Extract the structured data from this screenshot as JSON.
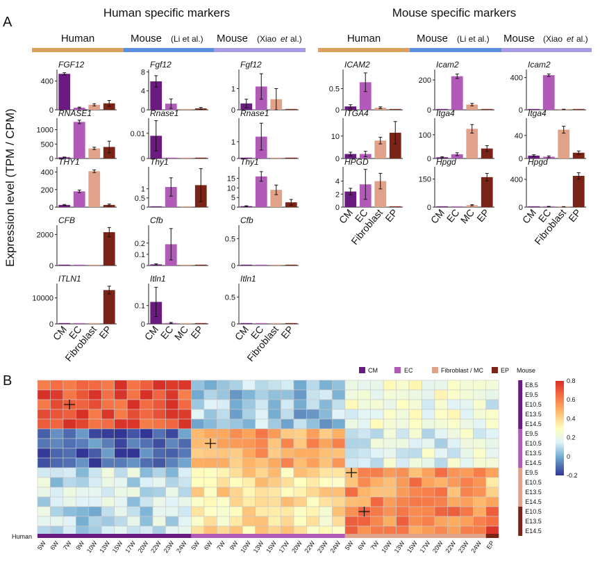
{
  "panel_labels": {
    "a": "A",
    "b": "B"
  },
  "section_titles": {
    "human_specific": "Human specific markers",
    "mouse_specific": "Mouse specific markers"
  },
  "column_headers": {
    "human": "Human",
    "mouse": "Mouse",
    "li": "(Li et al.)",
    "xiao_pre": "(Xiao",
    "xiao_et": "et",
    "xiao_post": "al.)",
    "li_pre": "(Li",
    "li_et": "et",
    "li_post": "al.)"
  },
  "y_axis_label": "Expression level (TPM / CPM)",
  "heatmap_legend": {
    "cm": "CM",
    "ec": "EC",
    "fib": "Fibroblast / MC",
    "ep": "EP",
    "mouse": "Mouse"
  },
  "human_bar_label": "Human",
  "colors": {
    "CM": "#6a1b7f",
    "EC": "#b25ab8",
    "Fibroblast": "#e0a38a",
    "MC": "#e0a38a",
    "EP": "#7a2418",
    "human_bar": "#dba05c",
    "li_bar": "#5b8ee0",
    "xiao_bar": "#a79be6"
  },
  "chart_data": [
    {
      "type": "bar",
      "group": "human_left",
      "gene": "FGF12",
      "categories": [
        "CM",
        "EC",
        "Fibroblast",
        "EP"
      ],
      "values": [
        500,
        30,
        70,
        90
      ],
      "errors": [
        15,
        8,
        15,
        40
      ],
      "yticks": [
        0,
        400
      ],
      "ylim": [
        0,
        560
      ]
    },
    {
      "type": "bar",
      "group": "human_left",
      "gene": "RNASE1",
      "categories": [
        "CM",
        "EC",
        "Fibroblast",
        "EP"
      ],
      "values": [
        40,
        1270,
        350,
        400
      ],
      "errors": [
        10,
        60,
        40,
        200
      ],
      "yticks": [
        0,
        500,
        1000
      ],
      "ylim": [
        0,
        1400
      ]
    },
    {
      "type": "bar",
      "group": "human_left",
      "gene": "THY1",
      "categories": [
        "CM",
        "EC",
        "Fibroblast",
        "EP"
      ],
      "values": [
        25,
        180,
        410,
        25
      ],
      "errors": [
        5,
        15,
        15,
        10
      ],
      "yticks": [
        0,
        200,
        400
      ],
      "ylim": [
        0,
        460
      ]
    },
    {
      "type": "bar",
      "group": "human_left",
      "gene": "CFB",
      "categories": [
        "CM",
        "EC",
        "Fibroblast",
        "EP"
      ],
      "values": [
        0,
        0,
        0,
        2150
      ],
      "errors": [
        0,
        0,
        0,
        300
      ],
      "yticks": [
        0,
        2000
      ],
      "ylim": [
        0,
        2600
      ]
    },
    {
      "type": "bar",
      "group": "human_left",
      "gene": "ITLN1",
      "categories": [
        "CM",
        "EC",
        "Fibroblast",
        "EP"
      ],
      "values": [
        0,
        0,
        0,
        13000
      ],
      "errors": [
        0,
        0,
        0,
        1500
      ],
      "yticks": [
        0,
        10000
      ],
      "ylim": [
        0,
        15500
      ]
    },
    {
      "type": "bar",
      "group": "li_left",
      "gene": "Fgf12",
      "categories": [
        "CM",
        "EC",
        "MC",
        "EP"
      ],
      "values": [
        6,
        1.3,
        0,
        0.3
      ],
      "errors": [
        1.2,
        1.0,
        0,
        0.2
      ],
      "yticks": [
        0,
        4,
        8
      ],
      "ylim": [
        0,
        8.5
      ]
    },
    {
      "type": "bar",
      "group": "li_left",
      "gene": "Rnase1",
      "categories": [
        "CM",
        "EC",
        "MC",
        "EP"
      ],
      "values": [
        0.009,
        0,
        0,
        0
      ],
      "errors": [
        0.006,
        0,
        0,
        0
      ],
      "yticks": [
        0.0,
        0.01
      ],
      "ylim": [
        0,
        0.016
      ]
    },
    {
      "type": "bar",
      "group": "li_left",
      "gene": "Thy1",
      "categories": [
        "CM",
        "EC",
        "MC",
        "EP"
      ],
      "values": [
        0,
        1.1,
        0,
        1.2
      ],
      "errors": [
        0,
        0.5,
        0,
        0.9
      ],
      "yticks": [
        0.0,
        0.5,
        1.0
      ],
      "ylim": [
        0,
        2.2
      ]
    },
    {
      "type": "bar",
      "group": "li_left",
      "gene": "Cfb",
      "categories": [
        "CM",
        "EC",
        "MC",
        "EP"
      ],
      "values": [
        0.01,
        0.19,
        0,
        0
      ],
      "errors": [
        0.005,
        0.14,
        0,
        0
      ],
      "yticks": [
        0.0,
        0.1,
        0.2
      ],
      "ylim": [
        0,
        0.36
      ]
    },
    {
      "type": "bar",
      "group": "li_left",
      "gene": "Itln1",
      "categories": [
        "CM",
        "EC",
        "MC",
        "EP"
      ],
      "values": [
        0.12,
        0.005,
        0,
        0
      ],
      "errors": [
        0.08,
        0.003,
        0,
        0
      ],
      "yticks": [
        0.0,
        0.1
      ],
      "ylim": [
        0,
        0.22
      ]
    },
    {
      "type": "bar",
      "group": "xiao_left",
      "gene": "Fgf12",
      "categories": [
        "CM",
        "EC",
        "Fibroblast",
        "EP"
      ],
      "values": [
        0.3,
        1.1,
        0.5,
        0
      ],
      "errors": [
        0.2,
        0.6,
        0.5,
        0
      ],
      "yticks": [
        0,
        1
      ],
      "ylim": [
        0,
        1.9
      ]
    },
    {
      "type": "bar",
      "group": "xiao_left",
      "gene": "Rnase1",
      "categories": [
        "CM",
        "EC",
        "Fibroblast",
        "EP"
      ],
      "values": [
        0,
        1.3,
        0,
        0
      ],
      "errors": [
        0,
        0.8,
        0,
        0
      ],
      "yticks": [
        0,
        1
      ],
      "ylim": [
        0,
        2.4
      ]
    },
    {
      "type": "bar",
      "group": "xiao_left",
      "gene": "Thy1",
      "categories": [
        "CM",
        "EC",
        "Fibroblast",
        "EP"
      ],
      "values": [
        0.5,
        16,
        9,
        2.5
      ],
      "errors": [
        0.2,
        2.5,
        2.5,
        1.5
      ],
      "yticks": [
        0,
        5,
        10,
        15
      ],
      "ylim": [
        0,
        21
      ]
    },
    {
      "type": "bar",
      "group": "xiao_left",
      "gene": "Cfb",
      "categories": [
        "CM",
        "EC",
        "Fibroblast",
        "EP"
      ],
      "values": [
        0,
        0,
        0,
        0
      ],
      "errors": [
        0,
        0,
        0,
        0
      ],
      "yticks": [
        0.0,
        0.5
      ],
      "ylim": [
        0,
        0.75
      ]
    },
    {
      "type": "bar",
      "group": "xiao_left",
      "gene": "Itln1",
      "categories": [
        "CM",
        "EC",
        "Fibroblast",
        "EP"
      ],
      "values": [
        0,
        0,
        0,
        0
      ],
      "errors": [
        0,
        0,
        0,
        0
      ],
      "yticks": [
        0.0,
        0.5
      ],
      "ylim": [
        0,
        0.75
      ]
    },
    {
      "type": "bar",
      "group": "human_right",
      "gene": "ICAM2",
      "categories": [
        "CM",
        "EC",
        "Fibroblast",
        "EP"
      ],
      "values": [
        0.08,
        0.65,
        0.05,
        0
      ],
      "errors": [
        0.04,
        0.22,
        0.02,
        0
      ],
      "yticks": [
        0.0,
        0.5
      ],
      "ylim": [
        0,
        0.95
      ]
    },
    {
      "type": "bar",
      "group": "human_right",
      "gene": "ITGA4",
      "categories": [
        "CM",
        "EC",
        "Fibroblast",
        "EP"
      ],
      "values": [
        2,
        2,
        8,
        11.5
      ],
      "errors": [
        0.8,
        1.2,
        1.5,
        5
      ],
      "yticks": [
        0,
        10
      ],
      "ylim": [
        0,
        18
      ]
    },
    {
      "type": "bar",
      "group": "human_right",
      "gene": "HPGD",
      "categories": [
        "CM",
        "EC",
        "Fibroblast",
        "EP"
      ],
      "values": [
        2.4,
        3.5,
        4,
        0
      ],
      "errors": [
        0.5,
        2.3,
        1.2,
        0
      ],
      "yticks": [
        0,
        2,
        4
      ],
      "ylim": [
        0,
        6.2
      ]
    },
    {
      "type": "bar",
      "group": "li_right",
      "gene": "Icam2",
      "categories": [
        "CM",
        "EC",
        "MC",
        "EP"
      ],
      "values": [
        0,
        225,
        35,
        0
      ],
      "errors": [
        0,
        15,
        8,
        0
      ],
      "yticks": [
        0,
        200
      ],
      "ylim": [
        0,
        270
      ]
    },
    {
      "type": "bar",
      "group": "li_right",
      "gene": "Itga4",
      "categories": [
        "CM",
        "EC",
        "MC",
        "EP"
      ],
      "values": [
        5,
        18,
        125,
        42
      ],
      "errors": [
        2,
        6,
        18,
        12
      ],
      "yticks": [
        0,
        100
      ],
      "ylim": [
        0,
        170
      ]
    },
    {
      "type": "bar",
      "group": "li_right",
      "gene": "Hpgd",
      "categories": [
        "CM",
        "EC",
        "MC",
        "EP"
      ],
      "values": [
        0,
        0,
        10,
        160
      ],
      "errors": [
        0,
        0,
        3,
        20
      ],
      "yticks": [
        0,
        150
      ],
      "ylim": [
        0,
        215
      ]
    },
    {
      "type": "bar",
      "group": "xiao_right",
      "gene": "Icam2",
      "categories": [
        "CM",
        "EC",
        "Fibroblast",
        "EP"
      ],
      "values": [
        0,
        430,
        5,
        0
      ],
      "errors": [
        0,
        15,
        2,
        0
      ],
      "yticks": [
        0,
        400
      ],
      "ylim": [
        0,
        500
      ]
    },
    {
      "type": "bar",
      "group": "xiao_right",
      "gene": "Itga4",
      "categories": [
        "CM",
        "EC",
        "Fibroblast",
        "EP"
      ],
      "values": [
        5,
        3,
        50,
        10
      ],
      "errors": [
        1.5,
        1.5,
        6,
        3
      ],
      "yticks": [
        0,
        40
      ],
      "ylim": [
        0,
        70
      ]
    },
    {
      "type": "bar",
      "group": "xiao_right",
      "gene": "Hpgd",
      "categories": [
        "CM",
        "EC",
        "Fibroblast",
        "EP"
      ],
      "values": [
        0,
        8,
        5,
        450
      ],
      "errors": [
        0,
        3,
        2,
        45
      ],
      "yticks": [
        0,
        400
      ],
      "ylim": [
        0,
        580
      ]
    },
    {
      "type": "heatmap",
      "x_labels": [
        "5W",
        "6W",
        "7W",
        "9W",
        "10W",
        "13W",
        "15W",
        "17W",
        "20W",
        "22W",
        "23W",
        "24W",
        "5W",
        "6W",
        "7W",
        "9W",
        "10W",
        "13W",
        "15W",
        "17W",
        "20W",
        "22W",
        "23W",
        "24W",
        "5W",
        "6W",
        "7W",
        "10W",
        "13W",
        "15W",
        "17W",
        "20W",
        "22W",
        "23W",
        "24W",
        "EP"
      ],
      "x_groups": [
        {
          "name": "CM",
          "count": 12
        },
        {
          "name": "EC",
          "count": 12
        },
        {
          "name": "Fibroblast",
          "count": 11
        },
        {
          "name": "EP",
          "count": 1
        }
      ],
      "y_labels": [
        "E8.5",
        "E9.5",
        "E10.5",
        "E13.5",
        "E14.5",
        "E9.5",
        "E10.5",
        "E13.5",
        "E14.5",
        "E9.5",
        "E10.5",
        "E13.5",
        "E14.5",
        "E10.5",
        "E13.5",
        "E14.5"
      ],
      "y_groups": [
        {
          "name": "CM",
          "count": 5
        },
        {
          "name": "EC",
          "count": 4
        },
        {
          "name": "Fibroblast",
          "count": 4
        },
        {
          "name": "EP",
          "count": 3
        }
      ],
      "block_means": [
        [
          0.72,
          0.05,
          0.22,
          0.2
        ],
        [
          -0.12,
          0.52,
          0.18,
          0.15
        ],
        [
          0.12,
          0.38,
          0.55,
          0.45
        ],
        [
          0.1,
          0.35,
          0.6,
          0.72
        ]
      ],
      "marked_cells": [
        [
          2,
          2
        ],
        [
          6,
          13
        ],
        [
          9,
          24
        ],
        [
          13,
          25
        ]
      ],
      "color_scale": {
        "min": -0.2,
        "max": 0.8,
        "ticks": [
          0.8,
          0.6,
          0.4,
          0.2,
          0,
          -0.2
        ]
      }
    }
  ]
}
